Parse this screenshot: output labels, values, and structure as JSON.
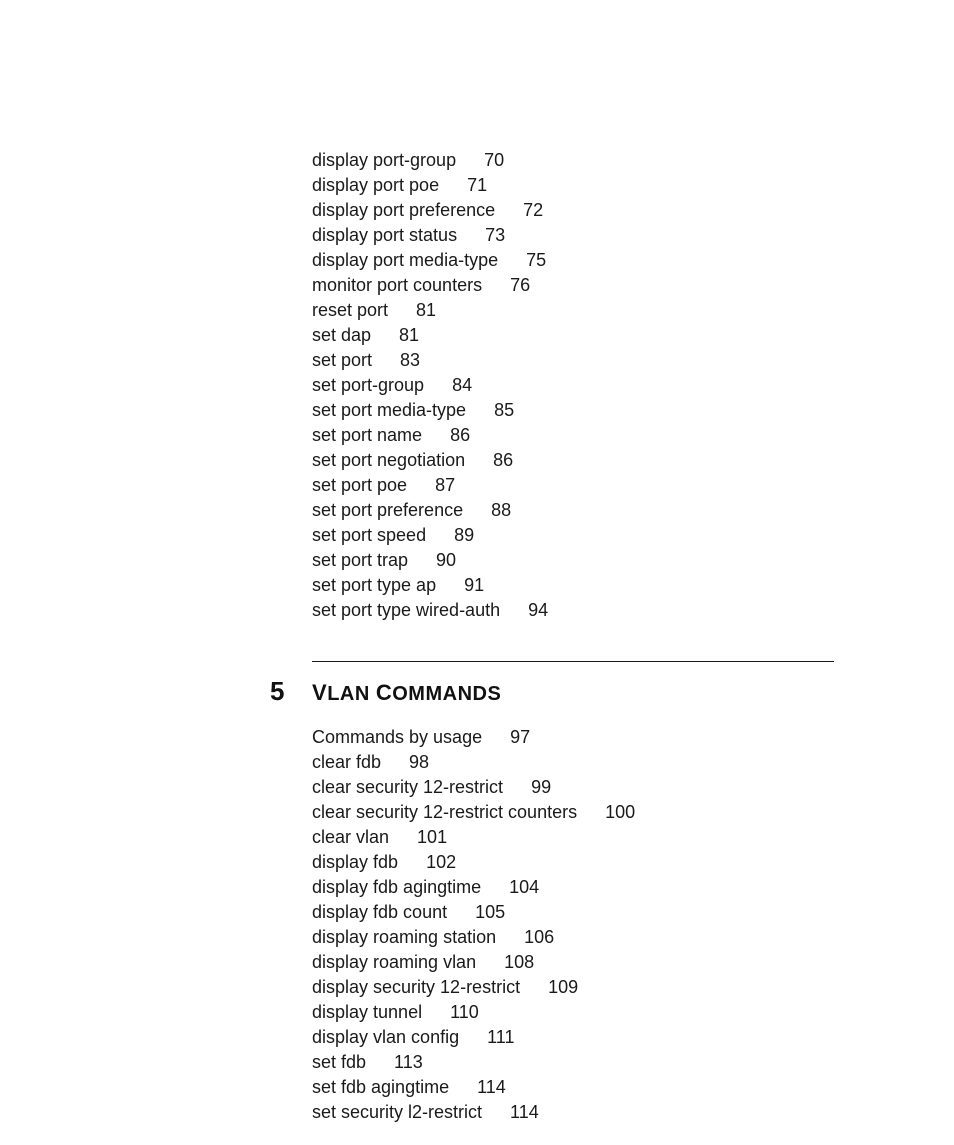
{
  "colors": {
    "text": "#1a1a1a",
    "background": "#ffffff",
    "rule": "#1a1a1a"
  },
  "typography": {
    "body_fontsize_pt": 13,
    "body_weight": 300,
    "heading_fontsize_pt": 15,
    "heading_weight": 700,
    "chapter_num_fontsize_pt": 19
  },
  "sections": [
    {
      "items": [
        {
          "label": "display port-group",
          "page": "70"
        },
        {
          "label": "display port poe",
          "page": "71"
        },
        {
          "label": "display port preference",
          "page": "72"
        },
        {
          "label": "display port status",
          "page": "73"
        },
        {
          "label": "display port media-type",
          "page": "75"
        },
        {
          "label": "monitor port counters",
          "page": "76"
        },
        {
          "label": "reset port",
          "page": "81"
        },
        {
          "label": "set dap",
          "page": "81"
        },
        {
          "label": "set port",
          "page": "83"
        },
        {
          "label": "set port-group",
          "page": "84"
        },
        {
          "label": "set port media-type",
          "page": "85"
        },
        {
          "label": "set port name",
          "page": "86"
        },
        {
          "label": "set port negotiation",
          "page": "86"
        },
        {
          "label": "set port poe",
          "page": "87"
        },
        {
          "label": "set port preference",
          "page": "88"
        },
        {
          "label": "set port speed",
          "page": "89"
        },
        {
          "label": "set port trap",
          "page": "90"
        },
        {
          "label": "set port type ap",
          "page": "91"
        },
        {
          "label": "set port type wired-auth",
          "page": "94"
        }
      ]
    },
    {
      "number": "5",
      "title_lead1": "V",
      "title_rest1": "LAN",
      "title_lead2": "C",
      "title_rest2": "OMMANDS",
      "items": [
        {
          "label": "Commands by usage",
          "page": "97"
        },
        {
          "label": "clear fdb",
          "page": "98"
        },
        {
          "label": "clear security 12-restrict",
          "page": "99"
        },
        {
          "label": "clear security 12-restrict counters",
          "page": "100"
        },
        {
          "label": "clear vlan",
          "page": "101"
        },
        {
          "label": "display fdb",
          "page": "102"
        },
        {
          "label": "display fdb agingtime",
          "page": "104"
        },
        {
          "label": "display fdb count",
          "page": "105"
        },
        {
          "label": "display roaming station",
          "page": "106"
        },
        {
          "label": "display roaming vlan",
          "page": "108"
        },
        {
          "label": "display security 12-restrict",
          "page": "109"
        },
        {
          "label": "display tunnel",
          "page": "110"
        },
        {
          "label": "display vlan config",
          "page": "111"
        },
        {
          "label": "set fdb",
          "page": "113"
        },
        {
          "label": "set fdb agingtime",
          "page": "114"
        },
        {
          "label": "set security l2-restrict",
          "page": "114"
        }
      ]
    }
  ]
}
